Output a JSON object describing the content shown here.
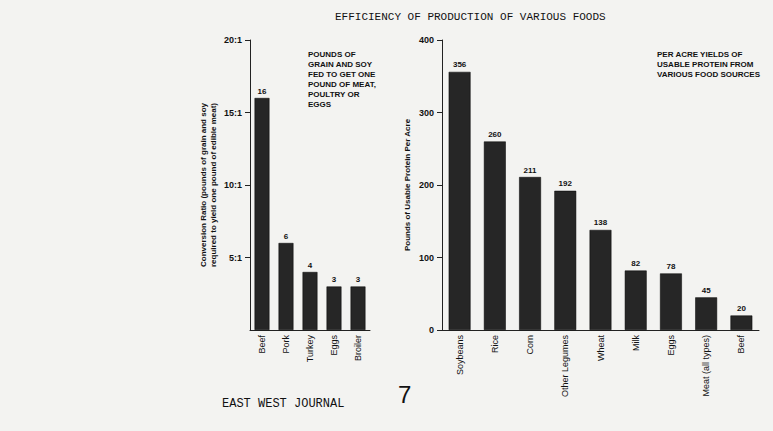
{
  "title": "EFFICIENCY OF PRODUCTION OF VARIOUS FOODS",
  "source": "EAST WEST JOURNAL",
  "page_number": "7",
  "chart_data": [
    {
      "type": "bar",
      "title": "POUNDS OF GRAIN AND SOY FED TO GET ONE POUND OF MEAT, POULTRY OR EGGS",
      "y_label": "Conversion Ratio (pounds of grain and soy required to yield one pound of edible meat)",
      "categories": [
        "Beef",
        "Pork",
        "Turkey",
        "Eggs",
        "Broiler"
      ],
      "values": [
        16,
        6,
        4,
        3,
        3
      ],
      "color": "#262626",
      "ylim": [
        0,
        20
      ],
      "yticks": [
        {
          "value": 5,
          "label": "5:1"
        },
        {
          "value": 10,
          "label": "10:1"
        },
        {
          "value": 15,
          "label": "15:1"
        },
        {
          "value": 20,
          "label": "20:1"
        }
      ],
      "data_labels": true,
      "grid": false
    },
    {
      "type": "bar",
      "title": "PER ACRE YIELDS OF USABLE PROTEIN FROM VARIOUS FOOD SOURCES",
      "y_label": "Pounds of Usable Protein Per Acre",
      "categories": [
        "Soybeans",
        "Rice",
        "Corn",
        "Other Legumes",
        "Wheat",
        "Milk",
        "Eggs",
        "Meat (all types)",
        "Beef"
      ],
      "values": [
        356,
        260,
        211,
        192,
        138,
        82,
        78,
        45,
        20
      ],
      "color": "#262626",
      "ylim": [
        0,
        400
      ],
      "yticks": [
        0,
        100,
        200,
        300,
        400
      ],
      "data_labels": true,
      "grid": false
    }
  ]
}
